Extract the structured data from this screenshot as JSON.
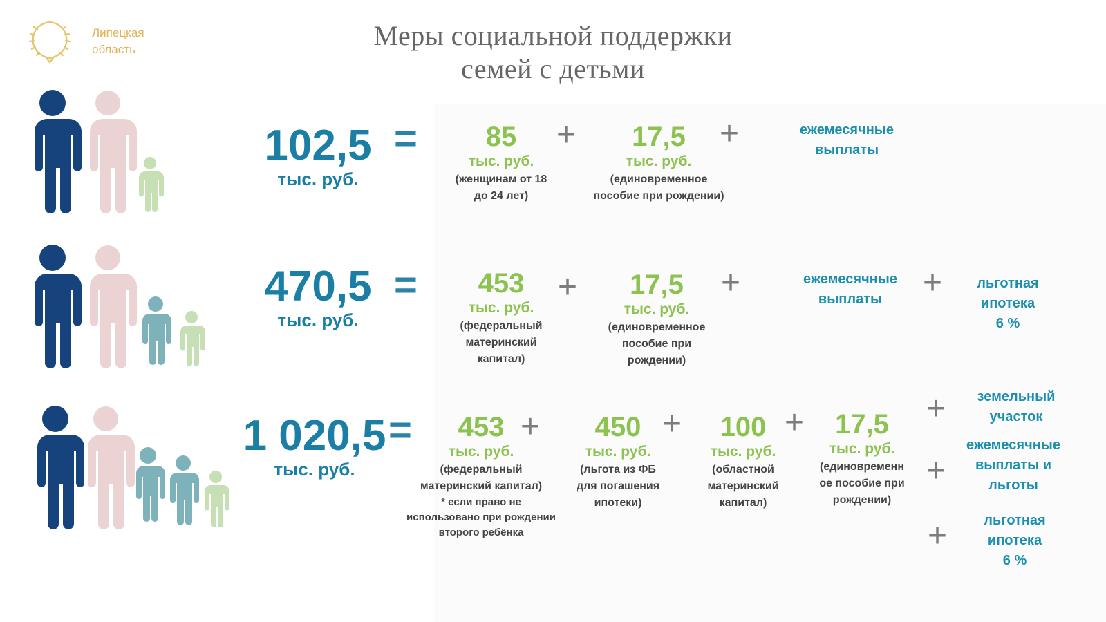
{
  "header": {
    "logo_text_line1": "Липецкая",
    "logo_text_line2": "область",
    "title_line1": "Меры социальной поддержки",
    "title_line2": "семей с детьми"
  },
  "colors": {
    "father": "#16437b",
    "mother": "#ecd3d3",
    "child_teal": "#7db2bb",
    "child_green": "#c6dfb4",
    "total_blue": "#1b7fa5",
    "amount_green": "#8cc350",
    "benefit_teal": "#1b8fae",
    "logo_gold": "#e0b357"
  },
  "rows": [
    {
      "total": "102,5",
      "total_unit": "тыс. руб.",
      "equals": "=",
      "items": [
        {
          "amount": "85",
          "unit": "тыс. руб.",
          "note1": "(женщинам от 18",
          "note2": "до 24 лет)"
        },
        {
          "amount": "17,5",
          "unit": "тыс. руб.",
          "note1": "(единовременное",
          "note2": "пособие при рождении)"
        }
      ],
      "benefits": [
        {
          "line1": "ежемесячные",
          "line2": "выплаты"
        }
      ]
    },
    {
      "total": "470,5",
      "total_unit": "тыс. руб.",
      "equals": "=",
      "items": [
        {
          "amount": "453",
          "unit": "тыс. руб.",
          "note1": "(федеральный",
          "note2": "материнский",
          "note3": "капитал)"
        },
        {
          "amount": "17,5",
          "unit": "тыс. руб.",
          "note1": "(единовременное",
          "note2": "пособие при",
          "note3": "рождении)"
        }
      ],
      "benefits": [
        {
          "line1": "ежемесячные",
          "line2": "выплаты"
        },
        {
          "line1": "льготная",
          "line2": "ипотека",
          "line3": "6 %"
        }
      ]
    },
    {
      "total": "1 020,5",
      "total_unit": "тыс. руб.",
      "equals": "=",
      "items": [
        {
          "amount": "453",
          "unit": "тыс. руб.",
          "note1": "(федеральный",
          "note2": "материнский капитал)",
          "note3": "* если право не",
          "note4": "использовано при рождении",
          "note5": "второго ребёнка"
        },
        {
          "amount": "450",
          "unit": "тыс. руб.",
          "note1": "(льгота из ФБ",
          "note2": "для погашения",
          "note3": "ипотеки)"
        },
        {
          "amount": "100",
          "unit": "тыс. руб.",
          "note1": "(областной",
          "note2": "материнский",
          "note3": "капитал)"
        },
        {
          "amount": "17,5",
          "unit": "тыс. руб.",
          "note1": "(единовременн",
          "note2": "ое пособие при",
          "note3": "рождении)"
        }
      ],
      "benefits": [
        {
          "line1": "земельный",
          "line2": "участок"
        },
        {
          "line1": "ежемесячные",
          "line2": "выплаты и",
          "line3": "льготы"
        },
        {
          "line1": "льготная",
          "line2": "ипотека",
          "line3": "6 %"
        }
      ]
    }
  ],
  "plus_sign": "+"
}
